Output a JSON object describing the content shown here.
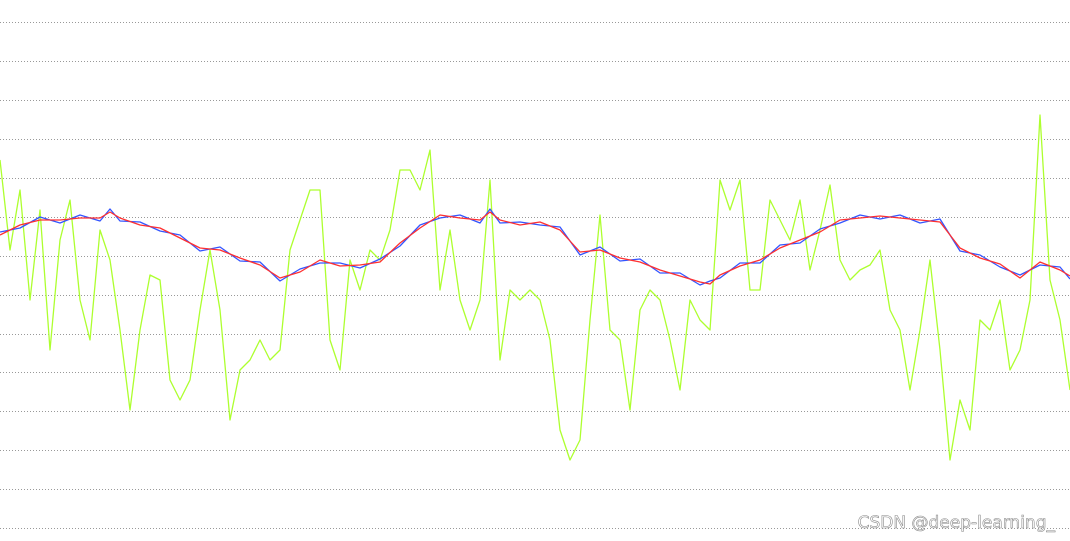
{
  "chart_data": {
    "type": "line",
    "xlim": [
      0,
      1070
    ],
    "ylim": [
      0,
      541
    ],
    "yticks": [
      13,
      52,
      91,
      130,
      169,
      207,
      246,
      285,
      324,
      363,
      402,
      441,
      480,
      519
    ],
    "grid": true,
    "grid_color": "#999999",
    "watermark": "CSDN @deep-learning_",
    "series": [
      {
        "color": "#adff2f",
        "x": [
          0,
          10,
          20,
          30,
          40,
          50,
          60,
          70,
          80,
          90,
          100,
          110,
          120,
          130,
          140,
          150,
          160,
          170,
          180,
          190,
          200,
          210,
          220,
          230,
          240,
          250,
          260,
          270,
          280,
          290,
          300,
          310,
          320,
          330,
          340,
          350,
          360,
          370,
          380,
          390,
          400,
          410,
          420,
          430,
          440,
          450,
          460,
          470,
          480,
          490,
          500,
          510,
          520,
          530,
          540,
          550,
          560,
          570,
          580,
          590,
          600,
          610,
          620,
          630,
          640,
          650,
          660,
          670,
          680,
          690,
          700,
          710,
          720,
          730,
          740,
          750,
          760,
          770,
          780,
          790,
          800,
          810,
          820,
          830,
          840,
          850,
          860,
          870,
          880,
          890,
          900,
          910,
          920,
          930,
          940,
          950,
          960,
          970,
          980,
          990,
          1000,
          1010,
          1020,
          1030,
          1040,
          1050,
          1060,
          1070
        ],
        "values": [
          381,
          291,
          351,
          241,
          331,
          191,
          301,
          341,
          241,
          201,
          311,
          281,
          211,
          131,
          211,
          266,
          261,
          161,
          141,
          161,
          231,
          291,
          231,
          121,
          171,
          181,
          201,
          181,
          191,
          291,
          321,
          351,
          351,
          201,
          171,
          281,
          251,
          291,
          281,
          311,
          371,
          371,
          351,
          391,
          251,
          311,
          241,
          211,
          241,
          361,
          181,
          251,
          241,
          251,
          241,
          201,
          111,
          81,
          101,
          221,
          326,
          211,
          201,
          131,
          231,
          251,
          241,
          201,
          151,
          241,
          221,
          211,
          361,
          331,
          361,
          251,
          251,
          341,
          321,
          301,
          341,
          271,
          311,
          356,
          281,
          261,
          271,
          276,
          291,
          231,
          211,
          151,
          211,
          281,
          191,
          81,
          141,
          111,
          221,
          211,
          241,
          171,
          191,
          241,
          426,
          261,
          221,
          151
        ]
      },
      {
        "color": "#3355ff",
        "x": [
          0,
          20,
          40,
          60,
          80,
          100,
          110,
          120,
          140,
          160,
          180,
          200,
          220,
          240,
          260,
          280,
          300,
          320,
          340,
          360,
          380,
          400,
          420,
          440,
          460,
          480,
          490,
          500,
          520,
          540,
          560,
          580,
          600,
          620,
          640,
          660,
          680,
          700,
          710,
          720,
          740,
          760,
          780,
          800,
          820,
          840,
          860,
          880,
          900,
          920,
          940,
          960,
          980,
          1000,
          1020,
          1040,
          1060,
          1070
        ],
        "values": [
          309,
          313,
          324,
          318,
          326,
          320,
          332,
          320,
          319,
          310,
          306,
          290,
          294,
          280,
          279,
          260,
          272,
          278,
          278,
          273,
          282,
          295,
          316,
          323,
          326,
          318,
          332,
          318,
          319,
          316,
          314,
          286,
          294,
          280,
          282,
          268,
          268,
          256,
          260,
          263,
          278,
          278,
          296,
          298,
          312,
          318,
          326,
          322,
          326,
          318,
          322,
          290,
          286,
          274,
          266,
          276,
          274,
          262
        ]
      },
      {
        "color": "#ff3030",
        "x": [
          0,
          20,
          40,
          60,
          80,
          100,
          110,
          120,
          140,
          160,
          180,
          200,
          220,
          240,
          260,
          280,
          300,
          320,
          340,
          360,
          380,
          400,
          420,
          440,
          460,
          480,
          490,
          500,
          520,
          540,
          560,
          580,
          600,
          620,
          640,
          660,
          680,
          700,
          710,
          720,
          740,
          760,
          780,
          800,
          820,
          840,
          860,
          880,
          900,
          920,
          940,
          960,
          980,
          1000,
          1020,
          1040,
          1060,
          1070
        ],
        "values": [
          306,
          316,
          321,
          321,
          323,
          323,
          329,
          323,
          316,
          313,
          303,
          293,
          291,
          283,
          276,
          263,
          269,
          281,
          275,
          276,
          279,
          298,
          313,
          326,
          323,
          321,
          329,
          321,
          316,
          319,
          311,
          289,
          291,
          283,
          279,
          271,
          265,
          259,
          257,
          266,
          275,
          281,
          293,
          301,
          309,
          321,
          323,
          325,
          323,
          321,
          319,
          293,
          283,
          277,
          263,
          279,
          271,
          265
        ]
      }
    ]
  }
}
